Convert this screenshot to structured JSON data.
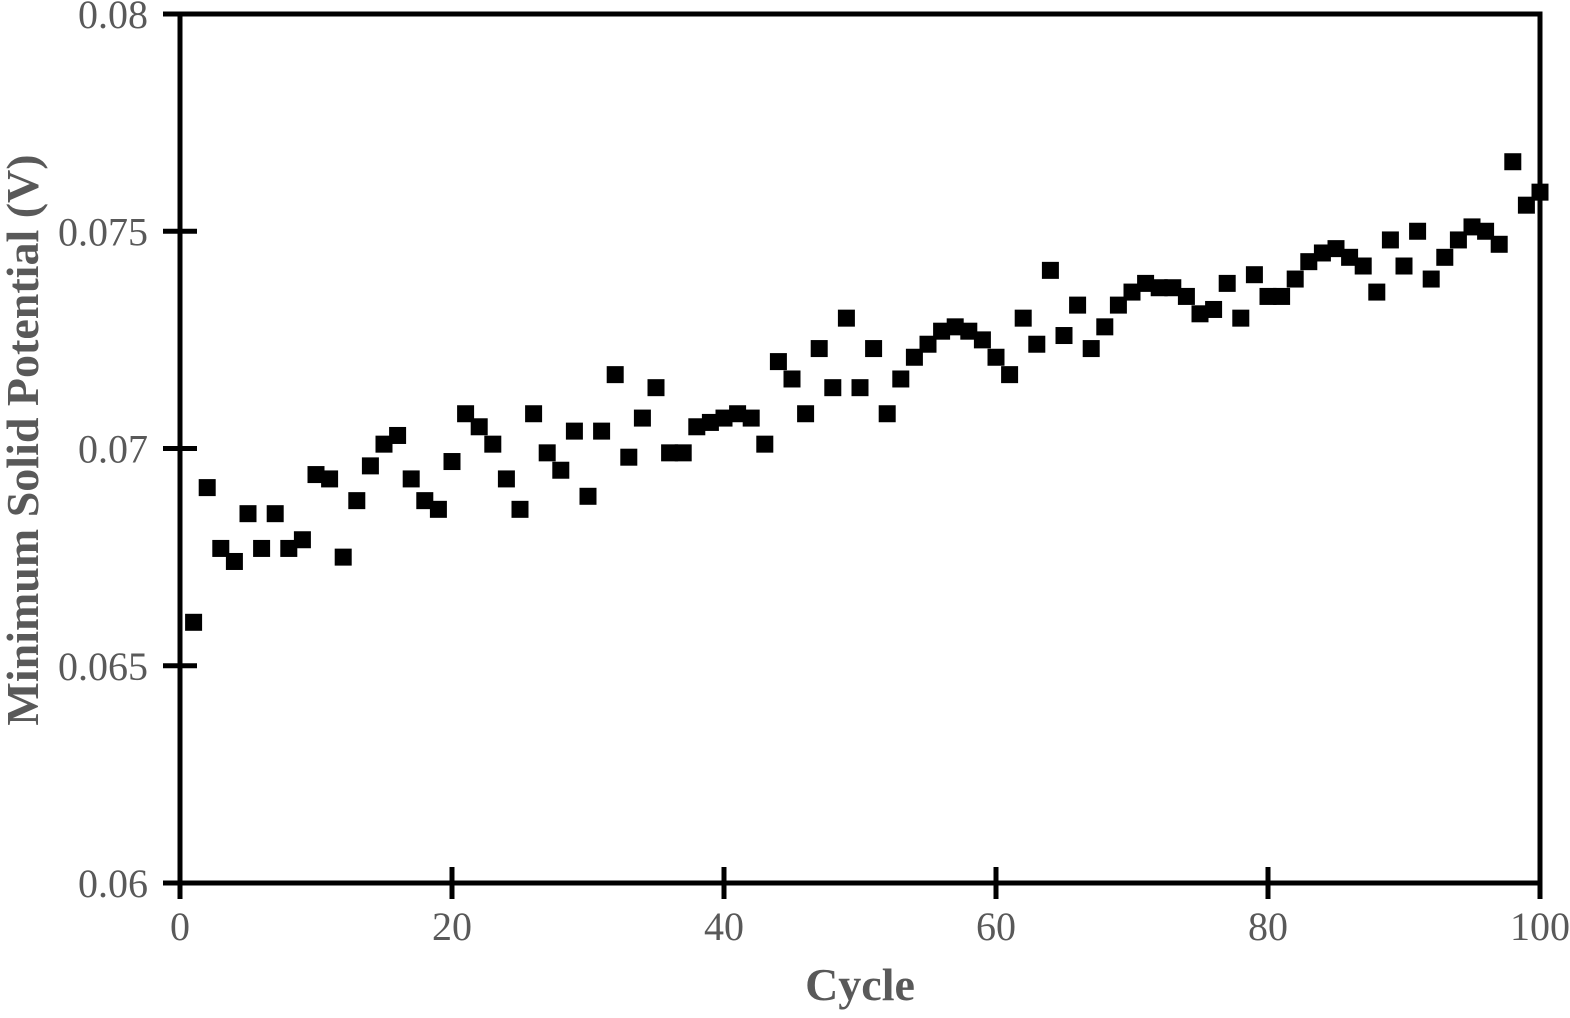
{
  "figure": {
    "background": "#ffffff"
  },
  "chart_data": {
    "type": "scatter",
    "title": "",
    "xlabel": "Cycle",
    "ylabel": "Minimum Solid Potential (V)",
    "xlim": [
      0,
      100
    ],
    "ylim": [
      0.06,
      0.08
    ],
    "x_ticks": [
      0,
      20,
      40,
      60,
      80,
      100
    ],
    "x_tick_labels": [
      "0",
      "20",
      "40",
      "60",
      "80",
      "100"
    ],
    "y_ticks": [
      0.06,
      0.065,
      0.07,
      0.075,
      0.08
    ],
    "y_tick_labels": [
      "0.06",
      "0.065",
      "0.07",
      "0.075",
      "0.08"
    ],
    "grid": false,
    "legend": "none",
    "marker": "square",
    "marker_size_px": 17,
    "marker_color": "#000000",
    "axis_color": "#000000",
    "label_color": "#595959",
    "x": [
      1,
      2,
      3,
      4,
      5,
      6,
      7,
      8,
      9,
      10,
      11,
      12,
      13,
      14,
      15,
      16,
      17,
      18,
      19,
      20,
      21,
      22,
      23,
      24,
      25,
      26,
      27,
      28,
      29,
      30,
      31,
      32,
      33,
      34,
      35,
      36,
      37,
      38,
      39,
      40,
      41,
      42,
      43,
      44,
      45,
      46,
      47,
      48,
      49,
      50,
      51,
      52,
      53,
      54,
      55,
      56,
      57,
      58,
      59,
      60,
      61,
      62,
      63,
      64,
      65,
      66,
      67,
      68,
      69,
      70,
      71,
      72,
      73,
      74,
      75,
      76,
      77,
      78,
      79,
      80,
      81,
      82,
      83,
      84,
      85,
      86,
      87,
      88,
      89,
      90,
      91,
      92,
      93,
      94,
      95,
      96,
      97,
      98,
      99,
      100
    ],
    "y": [
      0.066,
      0.0691,
      0.0677,
      0.0674,
      0.0685,
      0.0677,
      0.0685,
      0.0677,
      0.0679,
      0.0694,
      0.0693,
      0.0675,
      0.0688,
      0.0696,
      0.0701,
      0.0703,
      0.0693,
      0.0688,
      0.0686,
      0.0697,
      0.0708,
      0.0705,
      0.0701,
      0.0693,
      0.0686,
      0.0708,
      0.0699,
      0.0695,
      0.0704,
      0.0689,
      0.0704,
      0.0717,
      0.0698,
      0.0707,
      0.0714,
      0.0699,
      0.0699,
      0.0705,
      0.0706,
      0.0707,
      0.0708,
      0.0707,
      0.0701,
      0.072,
      0.0716,
      0.0708,
      0.0723,
      0.0714,
      0.073,
      0.0714,
      0.0723,
      0.0708,
      0.0716,
      0.0721,
      0.0724,
      0.0727,
      0.0728,
      0.0727,
      0.0725,
      0.0721,
      0.0717,
      0.073,
      0.0724,
      0.0741,
      0.0726,
      0.0733,
      0.0723,
      0.0728,
      0.0733,
      0.0736,
      0.0738,
      0.0737,
      0.0737,
      0.0735,
      0.0731,
      0.0732,
      0.0738,
      0.073,
      0.074,
      0.0735,
      0.0735,
      0.0739,
      0.0743,
      0.0745,
      0.0746,
      0.0744,
      0.0742,
      0.0736,
      0.0748,
      0.0742,
      0.075,
      0.0739,
      0.0744,
      0.0748,
      0.0751,
      0.075,
      0.0747,
      0.0766,
      0.0756,
      0.0759
    ]
  }
}
